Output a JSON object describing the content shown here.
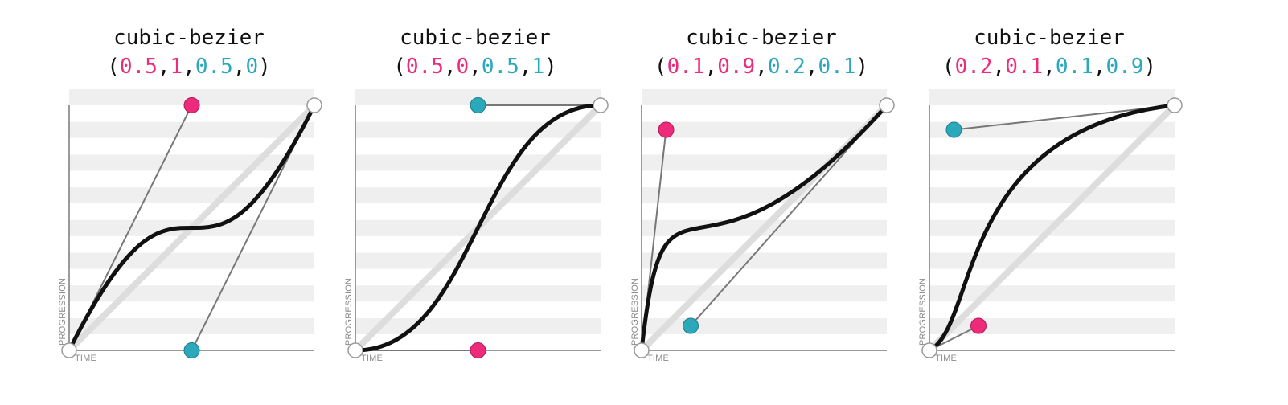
{
  "palette": {
    "p1_color": "#ee2a7b",
    "p2_color": "#2ba8ba",
    "curve_color": "#111111",
    "stripe_color": "#efefef",
    "diagonal_color": "#dddddd",
    "handle_line_color": "#777777"
  },
  "axis_labels": {
    "x": "TIME",
    "y": "PROGRESSION"
  },
  "panels": [
    {
      "title": "cubic-bezier",
      "open": "(",
      "close": ")",
      "comma": ",",
      "p1x": "0.5",
      "p1y": "1",
      "p2x": "0.5",
      "p2y": "0",
      "control_points": [
        [
          0.5,
          1
        ],
        [
          0.5,
          0
        ]
      ]
    },
    {
      "title": "cubic-bezier",
      "open": "(",
      "close": ")",
      "comma": ",",
      "p1x": "0.5",
      "p1y": "0",
      "p2x": "0.5",
      "p2y": "1",
      "control_points": [
        [
          0.5,
          0
        ],
        [
          0.5,
          1
        ]
      ]
    },
    {
      "title": "cubic-bezier",
      "open": "(",
      "close": ")",
      "comma": ",",
      "p1x": "0.1",
      "p1y": "0.9",
      "p2x": "0.2",
      "p2y": "0.1",
      "control_points": [
        [
          0.1,
          0.9
        ],
        [
          0.2,
          0.1
        ]
      ]
    },
    {
      "title": "cubic-bezier",
      "open": "(",
      "close": ")",
      "comma": ",",
      "p1x": "0.2",
      "p1y": "0.1",
      "p2x": "0.1",
      "p2y": "0.9",
      "control_points": [
        [
          0.2,
          0.1
        ],
        [
          0.1,
          0.9
        ]
      ]
    }
  ]
}
